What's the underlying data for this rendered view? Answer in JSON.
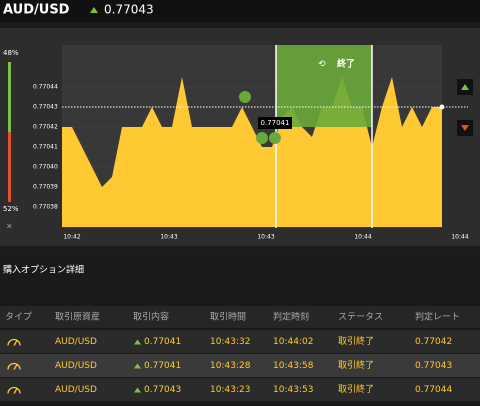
{
  "header": {
    "pair": "AUD/USD",
    "price": "0.77043"
  },
  "chart": {
    "type": "area",
    "up_pct": "48%",
    "down_pct": "52%",
    "close": "×",
    "zone_label": "終了",
    "marker_label": "0.77041",
    "ylim": [
      0.77037,
      0.77046
    ],
    "yticks": [
      0.77044,
      0.77043,
      0.77042,
      0.77041,
      0.7704,
      0.77039,
      0.77038
    ],
    "ytick_labels": [
      "0.77044",
      "0.77043",
      "0.77042",
      "0.77041",
      "0.77040",
      "0.77039",
      "0.77038"
    ],
    "xtick_labels": [
      "10:42",
      "10:43",
      "10:43",
      "10:44",
      "10:44"
    ],
    "current": 0.77043,
    "color": "#ffc933",
    "values": [
      0.77042,
      0.77042,
      0.77041,
      0.7704,
      0.77039,
      0.770395,
      0.77042,
      0.77042,
      0.77042,
      0.77043,
      0.77042,
      0.77042,
      0.770445,
      0.77042,
      0.77042,
      0.77042,
      0.77042,
      0.77042,
      0.77043,
      0.77042,
      0.77041,
      0.77041,
      0.770425,
      0.77043,
      0.77042,
      0.770415,
      0.77043,
      0.77043,
      0.770445,
      0.77043,
      0.77043,
      0.77041,
      0.77043,
      0.770445,
      0.77042,
      0.77043,
      0.77042,
      0.77043,
      0.77043
    ]
  },
  "section_title": "購入オプション詳細",
  "table": {
    "headers": [
      "タイプ",
      "取引原資産",
      "取引内容",
      "取引時間",
      "判定時刻",
      "ステータス",
      "判定レート"
    ],
    "rows": [
      [
        "AUD/USD",
        "0.77041",
        "10:43:32",
        "10:44:02",
        "取引終了",
        "0.77042"
      ],
      [
        "AUD/USD",
        "0.77041",
        "10:43:28",
        "10:43:58",
        "取引終了",
        "0.77043"
      ],
      [
        "AUD/USD",
        "0.77043",
        "10:43:23",
        "10:43:53",
        "取引終了",
        "0.77044"
      ]
    ]
  }
}
